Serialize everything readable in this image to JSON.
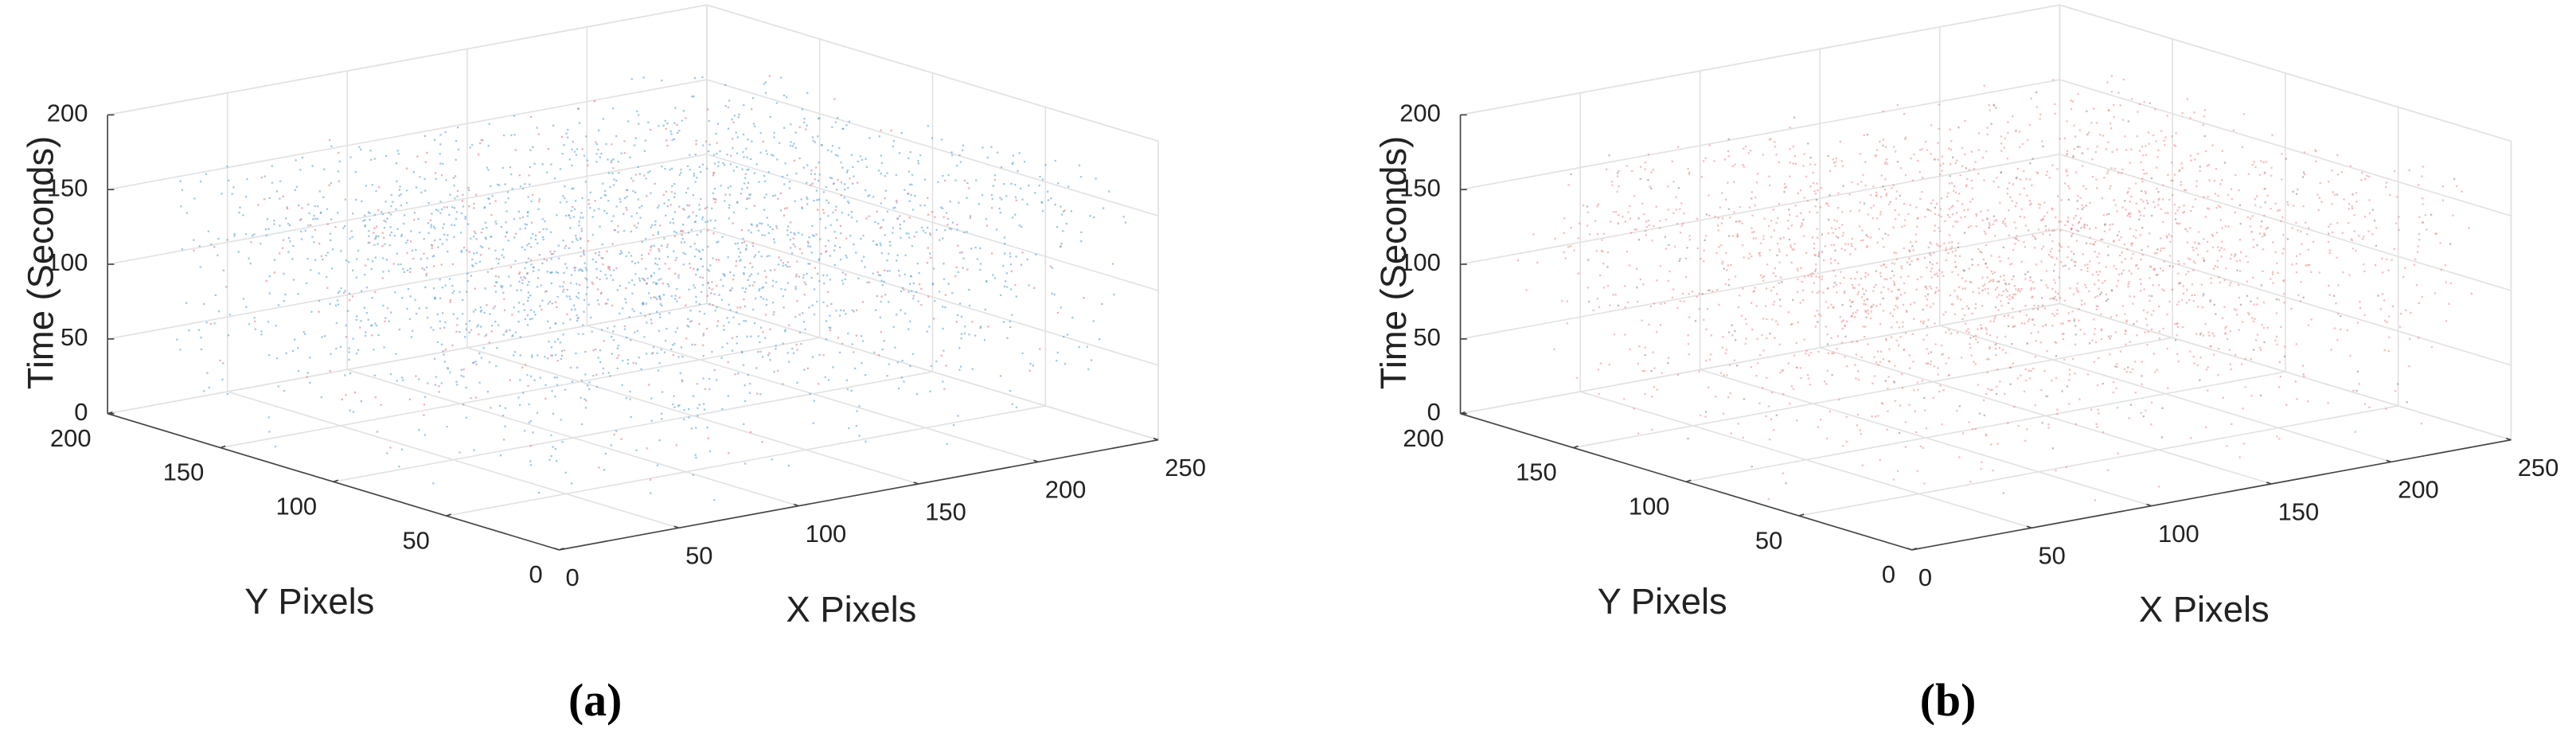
{
  "chart_data": [
    {
      "type": "scatter3d",
      "caption": "(a)",
      "xlabel": "X Pixels",
      "ylabel": "Y Pixels",
      "zlabel": "Time (Seconds)",
      "xlim": [
        0,
        250
      ],
      "ylim": [
        0,
        200
      ],
      "zlim": [
        0,
        200
      ],
      "xticks": [
        0,
        50,
        100,
        150,
        200,
        250
      ],
      "yticks": [
        0,
        50,
        100,
        150,
        200
      ],
      "zticks": [
        0,
        50,
        100,
        150,
        200
      ],
      "grid": true,
      "colors": [
        "#4d9ad6",
        "#f0676a"
      ]
    },
    {
      "type": "scatter3d",
      "caption": "(b)",
      "xlabel": "X Pixels",
      "ylabel": "Y Pixels",
      "zlabel": "Time (Seconds)",
      "xlim": [
        0,
        250
      ],
      "ylim": [
        0,
        200
      ],
      "zlim": [
        0,
        200
      ],
      "xticks": [
        0,
        50,
        100,
        150,
        200,
        250
      ],
      "yticks": [
        0,
        50,
        100,
        150,
        200
      ],
      "zticks": [
        0,
        50,
        100,
        150,
        200
      ],
      "grid": true,
      "colors": [
        "#f26b6b",
        "#6a6a6a"
      ]
    }
  ]
}
